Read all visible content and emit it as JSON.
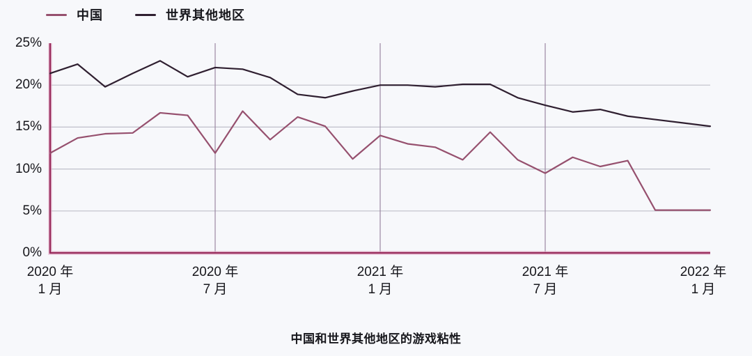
{
  "legend": {
    "items": [
      {
        "label": "中国",
        "color": "#96506e"
      },
      {
        "label": "世界其他地区",
        "color": "#2f1f30"
      }
    ]
  },
  "caption": "中国和世界其他地区的游戏粘性",
  "axes": {
    "y_tick_labels": [
      "25%",
      "20%",
      "15%",
      "10%",
      "5%",
      "0%"
    ],
    "x_tick_labels": [
      {
        "line1": "2020 年",
        "line2": "1 月"
      },
      {
        "line1": "2020 年",
        "line2": "7 月"
      },
      {
        "line1": "2021 年",
        "line2": "1 月"
      },
      {
        "line1": "2021 年",
        "line2": "7 月"
      },
      {
        "line1": "2022 年",
        "line2": "1 月"
      }
    ]
  },
  "colors": {
    "background": "#f7f8fb",
    "axis_line": "#992b5c",
    "axis_halo": "#e8b7cf",
    "horizontal_grid": "#bfbfca",
    "vertical_grid": "#9b87a2",
    "text": "#17171c"
  },
  "chart_data": {
    "type": "line",
    "title": "中国和世界其他地区的游戏粘性",
    "xlabel": "",
    "ylabel": "",
    "y_unit": "%",
    "ylim": [
      0,
      25
    ],
    "yticks": [
      0,
      5,
      10,
      15,
      20,
      25
    ],
    "grid": true,
    "legend_position": "top-left",
    "x": [
      "2020-01",
      "2020-02",
      "2020-03",
      "2020-04",
      "2020-05",
      "2020-06",
      "2020-07",
      "2020-08",
      "2020-09",
      "2020-10",
      "2020-11",
      "2020-12",
      "2021-01",
      "2021-02",
      "2021-03",
      "2021-04",
      "2021-05",
      "2021-06",
      "2021-07",
      "2021-08",
      "2021-09",
      "2021-10",
      "2021-11",
      "2021-12",
      "2022-01"
    ],
    "x_major_tick_indices": [
      0,
      6,
      12,
      18,
      24
    ],
    "vertical_gridline_indices": [
      6,
      12,
      18
    ],
    "series": [
      {
        "name": "中国",
        "color": "#96506e",
        "values": [
          11.9,
          13.7,
          14.2,
          14.3,
          16.7,
          16.4,
          11.9,
          16.9,
          13.5,
          16.2,
          15.1,
          11.2,
          14.0,
          13.0,
          12.6,
          11.1,
          14.4,
          11.1,
          9.5,
          11.4,
          10.3,
          11.0,
          5.1,
          5.1,
          5.1
        ]
      },
      {
        "name": "世界其他地区",
        "color": "#2f1f30",
        "values": [
          21.4,
          22.5,
          19.8,
          21.4,
          22.9,
          21.0,
          22.1,
          21.9,
          20.9,
          18.9,
          18.5,
          19.3,
          20.0,
          20.0,
          19.8,
          20.1,
          20.1,
          18.5,
          17.6,
          16.8,
          17.1,
          16.3,
          15.9,
          15.5,
          15.1
        ]
      }
    ]
  }
}
